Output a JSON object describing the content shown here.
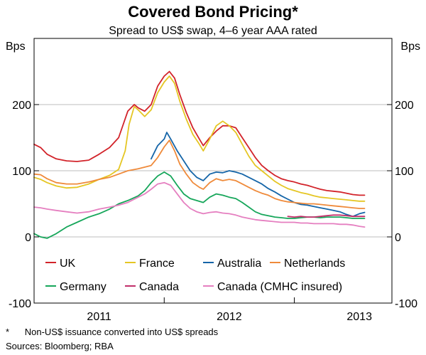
{
  "chart_data": {
    "type": "line",
    "title": "Covered Bond Pricing*",
    "subtitle": "Spread to US$ swap, 4–6 year AAA rated",
    "ylabel_left": "Bps",
    "ylabel_right": "Bps",
    "ylim": [
      -100,
      300
    ],
    "yticks": [
      -100,
      0,
      100,
      200
    ],
    "xlim": [
      2010.5,
      2013.25
    ],
    "year_labels": [
      {
        "label": "2011",
        "x": 2011.0
      },
      {
        "label": "2012",
        "x": 2012.0
      },
      {
        "label": "2013",
        "x": 2013.0
      }
    ],
    "year_dividers": [
      2011.5,
      2012.5
    ],
    "grid": true,
    "legend_placement": "bottom",
    "series": [
      {
        "name": "UK",
        "color": "#d2232a",
        "points": [
          [
            2010.5,
            140
          ],
          [
            2010.55,
            135
          ],
          [
            2010.6,
            125
          ],
          [
            2010.67,
            118
          ],
          [
            2010.75,
            115
          ],
          [
            2010.83,
            114
          ],
          [
            2010.92,
            116
          ],
          [
            2011.0,
            125
          ],
          [
            2011.08,
            135
          ],
          [
            2011.15,
            150
          ],
          [
            2011.22,
            190
          ],
          [
            2011.27,
            200
          ],
          [
            2011.3,
            195
          ],
          [
            2011.35,
            190
          ],
          [
            2011.4,
            200
          ],
          [
            2011.45,
            228
          ],
          [
            2011.5,
            243
          ],
          [
            2011.54,
            250
          ],
          [
            2011.58,
            240
          ],
          [
            2011.62,
            215
          ],
          [
            2011.67,
            188
          ],
          [
            2011.72,
            165
          ],
          [
            2011.77,
            148
          ],
          [
            2011.8,
            138
          ],
          [
            2011.85,
            150
          ],
          [
            2011.9,
            160
          ],
          [
            2011.95,
            168
          ],
          [
            2012.0,
            168
          ],
          [
            2012.05,
            165
          ],
          [
            2012.1,
            150
          ],
          [
            2012.15,
            135
          ],
          [
            2012.2,
            120
          ],
          [
            2012.25,
            108
          ],
          [
            2012.3,
            100
          ],
          [
            2012.35,
            93
          ],
          [
            2012.4,
            88
          ],
          [
            2012.45,
            85
          ],
          [
            2012.5,
            83
          ],
          [
            2012.55,
            80
          ],
          [
            2012.6,
            78
          ],
          [
            2012.65,
            75
          ],
          [
            2012.7,
            72
          ],
          [
            2012.75,
            70
          ],
          [
            2012.8,
            69
          ],
          [
            2012.85,
            68
          ],
          [
            2012.9,
            66
          ],
          [
            2012.95,
            64
          ],
          [
            2013.0,
            63
          ],
          [
            2013.04,
            63
          ]
        ]
      },
      {
        "name": "France",
        "color": "#e5c623",
        "points": [
          [
            2010.5,
            90
          ],
          [
            2010.55,
            87
          ],
          [
            2010.6,
            82
          ],
          [
            2010.67,
            77
          ],
          [
            2010.75,
            74
          ],
          [
            2010.83,
            75
          ],
          [
            2010.92,
            80
          ],
          [
            2011.0,
            87
          ],
          [
            2011.08,
            93
          ],
          [
            2011.15,
            102
          ],
          [
            2011.2,
            130
          ],
          [
            2011.23,
            170
          ],
          [
            2011.27,
            197
          ],
          [
            2011.3,
            192
          ],
          [
            2011.35,
            182
          ],
          [
            2011.4,
            192
          ],
          [
            2011.45,
            218
          ],
          [
            2011.5,
            234
          ],
          [
            2011.54,
            243
          ],
          [
            2011.58,
            232
          ],
          [
            2011.62,
            205
          ],
          [
            2011.67,
            178
          ],
          [
            2011.72,
            155
          ],
          [
            2011.77,
            140
          ],
          [
            2011.8,
            130
          ],
          [
            2011.85,
            148
          ],
          [
            2011.9,
            168
          ],
          [
            2011.95,
            175
          ],
          [
            2012.0,
            168
          ],
          [
            2012.05,
            158
          ],
          [
            2012.1,
            140
          ],
          [
            2012.15,
            122
          ],
          [
            2012.2,
            108
          ],
          [
            2012.25,
            100
          ],
          [
            2012.3,
            92
          ],
          [
            2012.35,
            84
          ],
          [
            2012.4,
            78
          ],
          [
            2012.45,
            73
          ],
          [
            2012.5,
            70
          ],
          [
            2012.55,
            67
          ],
          [
            2012.6,
            65
          ],
          [
            2012.65,
            62
          ],
          [
            2012.7,
            60
          ],
          [
            2012.75,
            59
          ],
          [
            2012.8,
            58
          ],
          [
            2012.85,
            57
          ],
          [
            2012.9,
            56
          ],
          [
            2012.95,
            55
          ],
          [
            2013.0,
            54
          ],
          [
            2013.04,
            54
          ]
        ]
      },
      {
        "name": "Australia",
        "color": "#1565a8",
        "points": [
          [
            2011.4,
            118
          ],
          [
            2011.45,
            138
          ],
          [
            2011.5,
            148
          ],
          [
            2011.52,
            158
          ],
          [
            2011.55,
            148
          ],
          [
            2011.6,
            130
          ],
          [
            2011.65,
            115
          ],
          [
            2011.7,
            100
          ],
          [
            2011.75,
            90
          ],
          [
            2011.8,
            85
          ],
          [
            2011.85,
            95
          ],
          [
            2011.9,
            98
          ],
          [
            2011.95,
            97
          ],
          [
            2012.0,
            100
          ],
          [
            2012.05,
            98
          ],
          [
            2012.1,
            95
          ],
          [
            2012.15,
            90
          ],
          [
            2012.2,
            85
          ],
          [
            2012.25,
            80
          ],
          [
            2012.3,
            73
          ],
          [
            2012.35,
            68
          ],
          [
            2012.4,
            62
          ],
          [
            2012.45,
            57
          ],
          [
            2012.5,
            52
          ],
          [
            2012.55,
            49
          ],
          [
            2012.6,
            48
          ],
          [
            2012.65,
            46
          ],
          [
            2012.7,
            44
          ],
          [
            2012.75,
            42
          ],
          [
            2012.8,
            40
          ],
          [
            2012.85,
            38
          ],
          [
            2012.9,
            34
          ],
          [
            2012.95,
            31
          ],
          [
            2013.0,
            35
          ],
          [
            2013.04,
            37
          ]
        ]
      },
      {
        "name": "Netherlands",
        "color": "#ef8a3a",
        "points": [
          [
            2010.5,
            95
          ],
          [
            2010.55,
            94
          ],
          [
            2010.6,
            88
          ],
          [
            2010.67,
            82
          ],
          [
            2010.75,
            80
          ],
          [
            2010.83,
            80
          ],
          [
            2010.92,
            83
          ],
          [
            2011.0,
            87
          ],
          [
            2011.08,
            90
          ],
          [
            2011.15,
            95
          ],
          [
            2011.22,
            100
          ],
          [
            2011.3,
            103
          ],
          [
            2011.4,
            108
          ],
          [
            2011.45,
            120
          ],
          [
            2011.5,
            136
          ],
          [
            2011.54,
            146
          ],
          [
            2011.58,
            130
          ],
          [
            2011.62,
            110
          ],
          [
            2011.67,
            95
          ],
          [
            2011.72,
            82
          ],
          [
            2011.77,
            75
          ],
          [
            2011.8,
            72
          ],
          [
            2011.85,
            82
          ],
          [
            2011.9,
            88
          ],
          [
            2011.95,
            85
          ],
          [
            2012.0,
            87
          ],
          [
            2012.05,
            85
          ],
          [
            2012.1,
            80
          ],
          [
            2012.15,
            75
          ],
          [
            2012.2,
            70
          ],
          [
            2012.25,
            66
          ],
          [
            2012.3,
            63
          ],
          [
            2012.35,
            58
          ],
          [
            2012.4,
            55
          ],
          [
            2012.45,
            53
          ],
          [
            2012.5,
            52
          ],
          [
            2012.55,
            51
          ],
          [
            2012.6,
            50
          ],
          [
            2012.65,
            50
          ],
          [
            2012.7,
            49
          ],
          [
            2012.75,
            48
          ],
          [
            2012.8,
            47
          ],
          [
            2012.85,
            46
          ],
          [
            2012.9,
            45
          ],
          [
            2012.95,
            44
          ],
          [
            2013.0,
            43
          ],
          [
            2013.04,
            43
          ]
        ]
      },
      {
        "name": "Germany",
        "color": "#16a65a",
        "points": [
          [
            2010.5,
            5
          ],
          [
            2010.55,
            0
          ],
          [
            2010.6,
            -2
          ],
          [
            2010.67,
            5
          ],
          [
            2010.75,
            15
          ],
          [
            2010.83,
            22
          ],
          [
            2010.92,
            30
          ],
          [
            2011.0,
            35
          ],
          [
            2011.08,
            42
          ],
          [
            2011.15,
            50
          ],
          [
            2011.22,
            55
          ],
          [
            2011.3,
            62
          ],
          [
            2011.35,
            70
          ],
          [
            2011.4,
            82
          ],
          [
            2011.45,
            92
          ],
          [
            2011.5,
            98
          ],
          [
            2011.55,
            92
          ],
          [
            2011.6,
            78
          ],
          [
            2011.65,
            65
          ],
          [
            2011.7,
            58
          ],
          [
            2011.75,
            55
          ],
          [
            2011.8,
            52
          ],
          [
            2011.85,
            60
          ],
          [
            2011.9,
            65
          ],
          [
            2011.95,
            63
          ],
          [
            2012.0,
            60
          ],
          [
            2012.05,
            58
          ],
          [
            2012.1,
            52
          ],
          [
            2012.15,
            45
          ],
          [
            2012.2,
            38
          ],
          [
            2012.25,
            34
          ],
          [
            2012.3,
            32
          ],
          [
            2012.35,
            30
          ],
          [
            2012.4,
            29
          ],
          [
            2012.45,
            28
          ],
          [
            2012.5,
            28
          ],
          [
            2012.55,
            29
          ],
          [
            2012.6,
            30
          ],
          [
            2012.65,
            30
          ],
          [
            2012.7,
            29
          ],
          [
            2012.75,
            30
          ],
          [
            2012.8,
            30
          ],
          [
            2012.85,
            30
          ],
          [
            2012.9,
            29
          ],
          [
            2012.95,
            28
          ],
          [
            2013.0,
            28
          ],
          [
            2013.04,
            28
          ]
        ]
      },
      {
        "name": "Canada",
        "color": "#c22f6a",
        "points": [
          [
            2012.45,
            31
          ],
          [
            2012.5,
            30
          ],
          [
            2012.55,
            31
          ],
          [
            2012.6,
            30
          ],
          [
            2012.65,
            30
          ],
          [
            2012.7,
            31
          ],
          [
            2012.75,
            32
          ],
          [
            2012.8,
            33
          ],
          [
            2012.85,
            33
          ],
          [
            2012.9,
            32
          ],
          [
            2012.95,
            31
          ],
          [
            2013.0,
            31
          ],
          [
            2013.04,
            31
          ]
        ]
      },
      {
        "name": "Canada (CMHC insured)",
        "color": "#e57fc0",
        "points": [
          [
            2010.5,
            45
          ],
          [
            2010.55,
            44
          ],
          [
            2010.6,
            42
          ],
          [
            2010.67,
            40
          ],
          [
            2010.75,
            38
          ],
          [
            2010.83,
            36
          ],
          [
            2010.92,
            38
          ],
          [
            2011.0,
            42
          ],
          [
            2011.08,
            45
          ],
          [
            2011.15,
            48
          ],
          [
            2011.22,
            52
          ],
          [
            2011.3,
            60
          ],
          [
            2011.35,
            65
          ],
          [
            2011.4,
            72
          ],
          [
            2011.45,
            80
          ],
          [
            2011.5,
            82
          ],
          [
            2011.55,
            78
          ],
          [
            2011.6,
            65
          ],
          [
            2011.65,
            52
          ],
          [
            2011.7,
            43
          ],
          [
            2011.75,
            38
          ],
          [
            2011.8,
            35
          ],
          [
            2011.85,
            37
          ],
          [
            2011.9,
            38
          ],
          [
            2011.95,
            36
          ],
          [
            2012.0,
            35
          ],
          [
            2012.05,
            33
          ],
          [
            2012.1,
            30
          ],
          [
            2012.15,
            28
          ],
          [
            2012.2,
            26
          ],
          [
            2012.25,
            25
          ],
          [
            2012.3,
            24
          ],
          [
            2012.35,
            23
          ],
          [
            2012.4,
            22
          ],
          [
            2012.45,
            22
          ],
          [
            2012.5,
            22
          ],
          [
            2012.55,
            21
          ],
          [
            2012.6,
            21
          ],
          [
            2012.65,
            20
          ],
          [
            2012.7,
            20
          ],
          [
            2012.75,
            20
          ],
          [
            2012.8,
            20
          ],
          [
            2012.85,
            19
          ],
          [
            2012.9,
            19
          ],
          [
            2012.95,
            18
          ],
          [
            2013.0,
            16
          ],
          [
            2013.04,
            15
          ]
        ]
      }
    ],
    "legend": [
      {
        "label": "UK",
        "color": "#d2232a",
        "row": 0,
        "col": 0
      },
      {
        "label": "France",
        "color": "#e5c623",
        "row": 0,
        "col": 1
      },
      {
        "label": "Australia",
        "color": "#1565a8",
        "row": 0,
        "col": 2
      },
      {
        "label": "Netherlands",
        "color": "#ef8a3a",
        "row": 0,
        "col": 3
      },
      {
        "label": "Germany",
        "color": "#16a65a",
        "row": 1,
        "col": 0
      },
      {
        "label": "Canada",
        "color": "#c22f6a",
        "row": 1,
        "col": 1
      },
      {
        "label": "Canada (CMHC insured)",
        "color": "#e57fc0",
        "row": 1,
        "col": 2
      }
    ],
    "footnote": "*      Non-US$ issuance converted into US$ spreads",
    "sources": "Sources: Bloomberg; RBA"
  }
}
